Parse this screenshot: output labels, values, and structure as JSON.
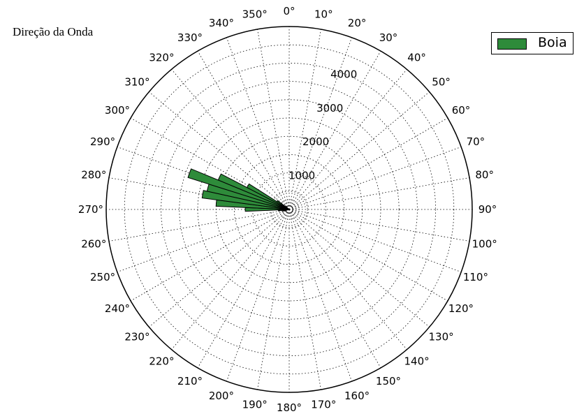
{
  "chart_data": {
    "type": "polar-bar",
    "title": "Direção da Onda",
    "series": [
      {
        "name": "Boia",
        "color": "#2e8b3a",
        "bin_width_deg": 5,
        "bars": [
          {
            "direction": 255,
            "value": 150
          },
          {
            "direction": 260,
            "value": 200
          },
          {
            "direction": 265,
            "value": 300
          },
          {
            "direction": 270,
            "value": 1200
          },
          {
            "direction": 275,
            "value": 2000
          },
          {
            "direction": 280,
            "value": 2400
          },
          {
            "direction": 285,
            "value": 2300
          },
          {
            "direction": 290,
            "value": 2900
          },
          {
            "direction": 295,
            "value": 2100
          },
          {
            "direction": 300,
            "value": 1300
          },
          {
            "direction": 305,
            "value": 400
          },
          {
            "direction": 310,
            "value": 150
          }
        ]
      }
    ],
    "angle_ticks": [
      "0°",
      "10°",
      "20°",
      "30°",
      "40°",
      "50°",
      "60°",
      "70°",
      "80°",
      "90°",
      "100°",
      "110°",
      "120°",
      "130°",
      "140°",
      "150°",
      "160°",
      "170°",
      "180°",
      "190°",
      "200°",
      "210°",
      "220°",
      "230°",
      "240°",
      "250°",
      "260°",
      "270°",
      "280°",
      "290°",
      "300°",
      "310°",
      "320°",
      "330°",
      "340°",
      "350°"
    ],
    "radial_ticks": [
      1000,
      2000,
      3000,
      4000
    ],
    "radial_tick_labels": [
      "1000",
      "2000",
      "3000",
      "4000"
    ],
    "rmax": 5000,
    "zero_direction": "north",
    "rotation": "clockwise",
    "grid": true,
    "legend_position": "top-right"
  }
}
